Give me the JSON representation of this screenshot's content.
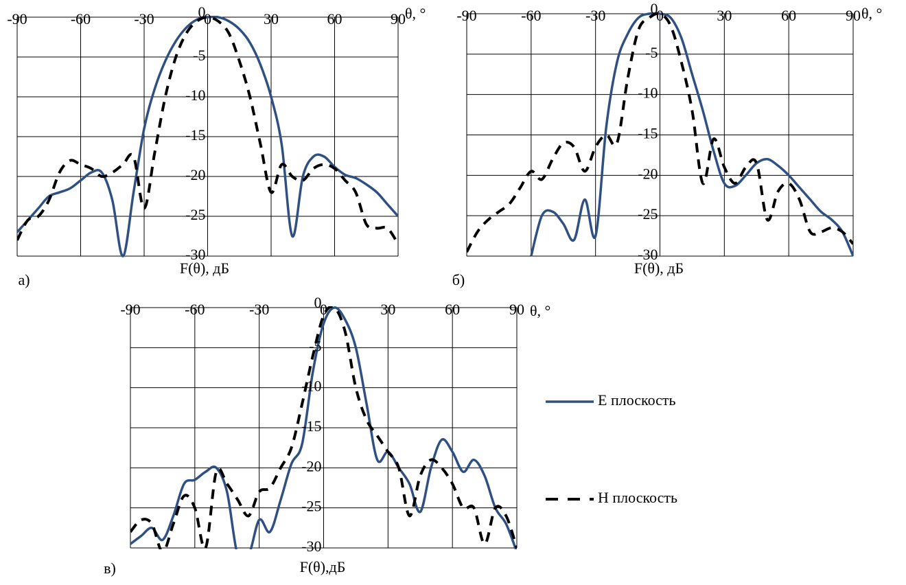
{
  "chart_data": [
    {
      "type": "line",
      "panel_label": "а)",
      "x_label": "θ, °",
      "y_label": "F(θ), дБ",
      "x": [
        -90,
        -85,
        -80,
        -75,
        -70,
        -65,
        -60,
        -55,
        -50,
        -45,
        -40,
        -35,
        -30,
        -25,
        -20,
        -15,
        -10,
        -5,
        0,
        5,
        10,
        15,
        20,
        25,
        30,
        35,
        40,
        45,
        50,
        55,
        60,
        65,
        70,
        75,
        80,
        85,
        90
      ],
      "series": [
        {
          "color": "#2f5082",
          "style": "solid",
          "values": [
            -27,
            -25.5,
            -24,
            -22.5,
            -22,
            -21.5,
            -20.5,
            -19.5,
            -19.5,
            -23,
            -30,
            -22,
            -14,
            -9,
            -5.5,
            -3,
            -1.3,
            -0.3,
            0,
            0,
            -0.5,
            -1.5,
            -3.2,
            -6,
            -10,
            -16,
            -27.5,
            -20,
            -17.5,
            -17.5,
            -18.8,
            -19.8,
            -20.2,
            -21,
            -22,
            -23.5,
            -25
          ]
        },
        {
          "color": "#000000",
          "style": "dashed",
          "values": [
            -28,
            -25.5,
            -25,
            -23,
            -19.5,
            -18,
            -18.5,
            -19,
            -20,
            -19.5,
            -18.5,
            -17.5,
            -24,
            -17,
            -10,
            -5,
            -2,
            -0.5,
            0,
            -0.5,
            -2,
            -5.5,
            -10,
            -16,
            -22,
            -18.5,
            -20,
            -20.5,
            -19,
            -18.5,
            -19,
            -20.5,
            -22,
            -26,
            -26.5,
            -26.5,
            -28.5
          ]
        }
      ],
      "xlim": [
        -90,
        90
      ],
      "xticks": [
        -90,
        -60,
        -30,
        0,
        30,
        60,
        90
      ],
      "ylim": [
        -30,
        0
      ],
      "yticks": [
        0,
        -5,
        -10,
        -15,
        -20,
        -25,
        -30
      ],
      "grid": true
    },
    {
      "type": "line",
      "panel_label": "б)",
      "x_label": "θ, °",
      "y_label": "F(θ), дБ",
      "x": [
        -90,
        -85,
        -80,
        -75,
        -70,
        -65,
        -60,
        -55,
        -50,
        -45,
        -40,
        -35,
        -30,
        -25,
        -20,
        -15,
        -10,
        -5,
        0,
        5,
        10,
        15,
        20,
        25,
        30,
        35,
        40,
        45,
        50,
        55,
        60,
        65,
        70,
        75,
        80,
        85,
        90
      ],
      "series": [
        {
          "color": "#2f5082",
          "style": "solid",
          "values": [
            null,
            null,
            null,
            null,
            null,
            null,
            -30,
            -25,
            -24.5,
            -26,
            -28,
            -23,
            -27.5,
            -14,
            -6,
            -2.5,
            -0.5,
            0,
            0,
            -0.5,
            -3,
            -7.5,
            -12,
            -17,
            -21,
            -21.3,
            -20,
            -18.5,
            -18,
            -18.8,
            -20,
            -21.5,
            -23,
            -24.5,
            -25.5,
            -27,
            -30
          ]
        },
        {
          "color": "#000000",
          "style": "dashed",
          "values": [
            -29.5,
            -27,
            -25.5,
            -24.5,
            -23.5,
            -21.5,
            -19.5,
            -20.5,
            -18,
            -16,
            -16.5,
            -19.5,
            -16.5,
            -15,
            -16,
            -8,
            -2,
            -0.5,
            0,
            -1.5,
            -6,
            -12,
            -21,
            -15.5,
            -19,
            -21,
            -19,
            -18.5,
            -25.5,
            -22,
            -21,
            -23,
            -27,
            -27,
            -26.5,
            -27,
            -28.5
          ]
        }
      ],
      "xlim": [
        -90,
        90
      ],
      "xticks": [
        -90,
        -60,
        -30,
        0,
        30,
        60,
        90
      ],
      "ylim": [
        -30,
        0
      ],
      "yticks": [
        0,
        -5,
        -10,
        -15,
        -20,
        -25,
        -30
      ],
      "grid": true
    },
    {
      "type": "line",
      "panel_label": "в)",
      "x_label": "θ, °",
      "y_label": "F(θ),дБ",
      "x": [
        -90,
        -85,
        -80,
        -75,
        -70,
        -65,
        -60,
        -55,
        -50,
        -45,
        -40,
        -35,
        -30,
        -25,
        -20,
        -15,
        -10,
        -5,
        0,
        5,
        10,
        15,
        20,
        25,
        30,
        35,
        40,
        45,
        50,
        55,
        60,
        65,
        70,
        75,
        80,
        85,
        90
      ],
      "series": [
        {
          "name": "E плоскость",
          "color": "#2f5082",
          "style": "solid",
          "values": [
            -29.5,
            -28.5,
            -27.5,
            -29,
            -26,
            -22,
            -21.5,
            -20.5,
            -20,
            -23,
            -31,
            -31,
            -26.5,
            -28,
            -24,
            -19.5,
            -17,
            -8,
            -2,
            0,
            -1.5,
            -5,
            -12,
            -19,
            -18,
            -20,
            -22,
            -25.5,
            -20,
            -16.5,
            -18,
            -20.5,
            -19,
            -21,
            -25,
            -27,
            -30.5
          ]
        },
        {
          "name": "H плоскость",
          "color": "#000000",
          "style": "dashed",
          "values": [
            -28,
            -26.5,
            -27,
            -30.5,
            -27,
            -23.5,
            -25,
            -30,
            -20.5,
            -22,
            -24,
            -26,
            -23,
            -22.5,
            -20,
            -17.5,
            -12,
            -6,
            -1,
            0,
            -3,
            -10,
            -14,
            -16,
            -18,
            -20,
            -26,
            -21,
            -19,
            -20,
            -22,
            -25,
            -25,
            -29.5,
            -25,
            -26,
            -30
          ]
        }
      ],
      "xlim": [
        -90,
        90
      ],
      "xticks": [
        -90,
        -60,
        -30,
        0,
        30,
        60,
        90
      ],
      "ylim": [
        -30,
        0
      ],
      "yticks": [
        0,
        -5,
        -10,
        -15,
        -20,
        -25,
        -30
      ],
      "grid": true,
      "legend": "right"
    }
  ]
}
